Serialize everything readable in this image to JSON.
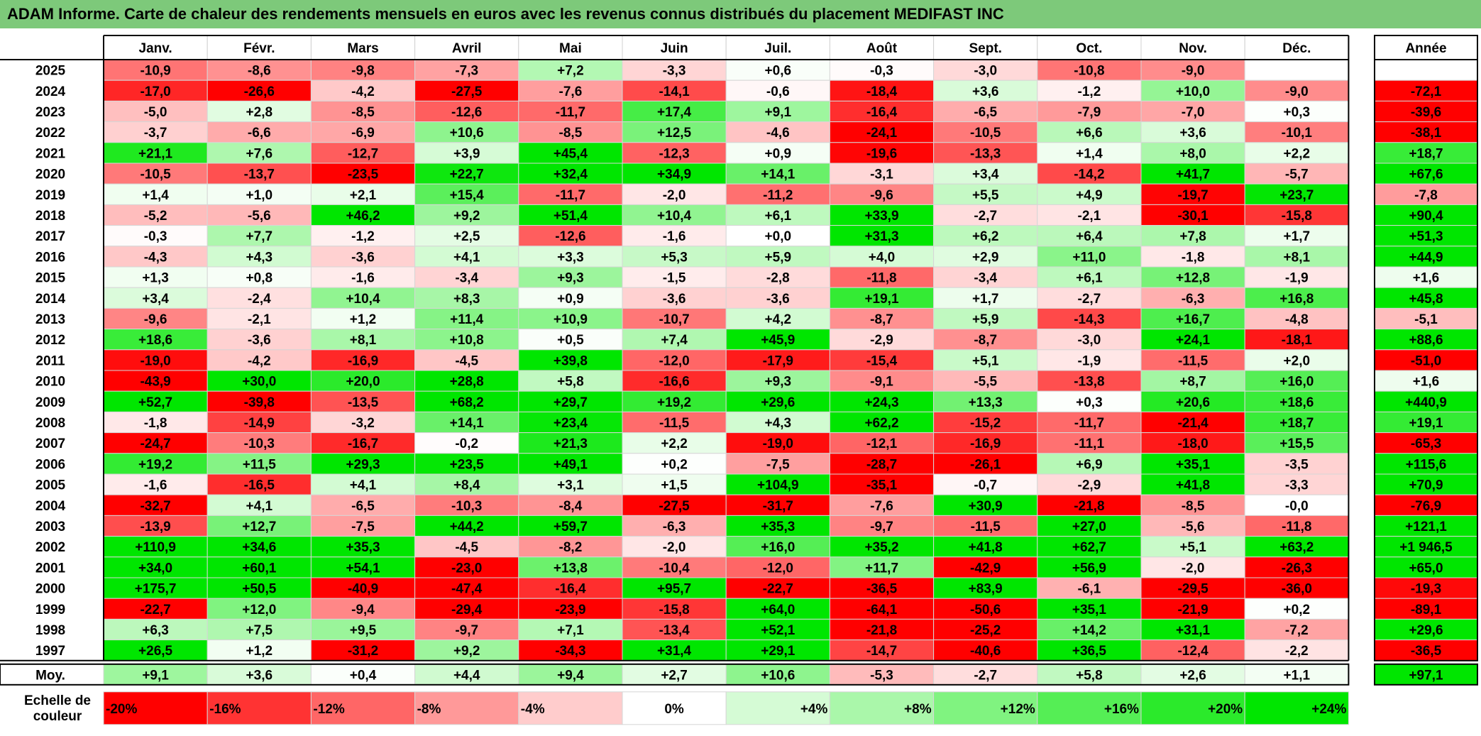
{
  "title": "ADAM Informe. Carte de chaleur des rendements mensuels en euros avec les revenus connus distribués du placement MEDIFAST INC",
  "chart_data": {
    "type": "heatmap",
    "title": "ADAM Informe. Carte de chaleur des rendements mensuels en euros avec les revenus connus distribués du placement MEDIFAST INC",
    "columns": [
      "Janv.",
      "Févr.",
      "Mars",
      "Avril",
      "Mai",
      "Juin",
      "Juil.",
      "Août",
      "Sept.",
      "Oct.",
      "Nov.",
      "Déc."
    ],
    "annual_header": "Année",
    "rows": [
      {
        "year": "2025",
        "values": [
          "-10,9",
          "-8,6",
          "-9,8",
          "-7,3",
          "+7,2",
          "-3,3",
          "+0,6",
          "-0,3",
          "-3,0",
          "-10,8",
          "-9,0",
          ""
        ],
        "annual": ""
      },
      {
        "year": "2024",
        "values": [
          "-17,0",
          "-26,6",
          "-4,2",
          "-27,5",
          "-7,6",
          "-14,1",
          "-0,6",
          "-18,4",
          "+3,6",
          "-1,2",
          "+10,0",
          "-9,0"
        ],
        "annual": "-72,1"
      },
      {
        "year": "2023",
        "values": [
          "-5,0",
          "+2,8",
          "-8,5",
          "-12,6",
          "-11,7",
          "+17,4",
          "+9,1",
          "-16,4",
          "-6,5",
          "-7,9",
          "-7,0",
          "+0,3"
        ],
        "annual": "-39,6"
      },
      {
        "year": "2022",
        "values": [
          "-3,7",
          "-6,6",
          "-6,9",
          "+10,6",
          "-8,5",
          "+12,5",
          "-4,6",
          "-24,1",
          "-10,5",
          "+6,6",
          "+3,6",
          "-10,1"
        ],
        "annual": "-38,1"
      },
      {
        "year": "2021",
        "values": [
          "+21,1",
          "+7,6",
          "-12,7",
          "+3,9",
          "+45,4",
          "-12,3",
          "+0,9",
          "-19,6",
          "-13,3",
          "+1,4",
          "+8,0",
          "+2,2"
        ],
        "annual": "+18,7"
      },
      {
        "year": "2020",
        "values": [
          "-10,5",
          "-13,7",
          "-23,5",
          "+22,7",
          "+32,4",
          "+34,9",
          "+14,1",
          "-3,1",
          "+3,4",
          "-14,2",
          "+41,7",
          "-5,7"
        ],
        "annual": "+67,6"
      },
      {
        "year": "2019",
        "values": [
          "+1,4",
          "+1,0",
          "+2,1",
          "+15,4",
          "-11,7",
          "-2,0",
          "-11,2",
          "-9,6",
          "+5,5",
          "+4,9",
          "-19,7",
          "+23,7"
        ],
        "annual": "-7,8"
      },
      {
        "year": "2018",
        "values": [
          "-5,2",
          "-5,6",
          "+46,2",
          "+9,2",
          "+51,4",
          "+10,4",
          "+6,1",
          "+33,9",
          "-2,7",
          "-2,1",
          "-30,1",
          "-15,8"
        ],
        "annual": "+90,4"
      },
      {
        "year": "2017",
        "values": [
          "-0,3",
          "+7,7",
          "-1,2",
          "+2,5",
          "-12,6",
          "-1,6",
          "+0,0",
          "+31,3",
          "+6,2",
          "+6,4",
          "+7,8",
          "+1,7"
        ],
        "annual": "+51,3"
      },
      {
        "year": "2016",
        "values": [
          "-4,3",
          "+4,3",
          "-3,6",
          "+4,1",
          "+3,3",
          "+5,3",
          "+5,9",
          "+4,0",
          "+2,9",
          "+11,0",
          "-1,8",
          "+8,1"
        ],
        "annual": "+44,9"
      },
      {
        "year": "2015",
        "values": [
          "+1,3",
          "+0,8",
          "-1,6",
          "-3,4",
          "+9,3",
          "-1,5",
          "-2,8",
          "-11,8",
          "-3,4",
          "+6,1",
          "+12,8",
          "-1,9"
        ],
        "annual": "+1,6"
      },
      {
        "year": "2014",
        "values": [
          "+3,4",
          "-2,4",
          "+10,4",
          "+8,3",
          "+0,9",
          "-3,6",
          "-3,6",
          "+19,1",
          "+1,7",
          "-2,7",
          "-6,3",
          "+16,8"
        ],
        "annual": "+45,8"
      },
      {
        "year": "2013",
        "values": [
          "-9,6",
          "-2,1",
          "+1,2",
          "+11,4",
          "+10,9",
          "-10,7",
          "+4,2",
          "-8,7",
          "+5,9",
          "-14,3",
          "+16,7",
          "-4,8"
        ],
        "annual": "-5,1"
      },
      {
        "year": "2012",
        "values": [
          "+18,6",
          "-3,6",
          "+8,1",
          "+10,8",
          "+0,5",
          "+7,4",
          "+45,9",
          "-2,9",
          "-8,7",
          "-3,0",
          "+24,1",
          "-18,1"
        ],
        "annual": "+88,6"
      },
      {
        "year": "2011",
        "values": [
          "-19,0",
          "-4,2",
          "-16,9",
          "-4,5",
          "+39,8",
          "-12,0",
          "-17,9",
          "-15,4",
          "+5,1",
          "-1,9",
          "-11,5",
          "+2,0"
        ],
        "annual": "-51,0"
      },
      {
        "year": "2010",
        "values": [
          "-43,9",
          "+30,0",
          "+20,0",
          "+28,8",
          "+5,8",
          "-16,6",
          "+9,3",
          "-9,1",
          "-5,5",
          "-13,8",
          "+8,7",
          "+16,0"
        ],
        "annual": "+1,6"
      },
      {
        "year": "2009",
        "values": [
          "+52,7",
          "-39,8",
          "-13,5",
          "+68,2",
          "+29,7",
          "+19,2",
          "+29,6",
          "+24,3",
          "+13,3",
          "+0,3",
          "+20,6",
          "+18,6"
        ],
        "annual": "+440,9"
      },
      {
        "year": "2008",
        "values": [
          "-1,8",
          "-14,9",
          "-3,2",
          "+14,1",
          "+23,4",
          "-11,5",
          "+4,3",
          "+62,2",
          "-15,2",
          "-11,7",
          "-21,4",
          "+18,7"
        ],
        "annual": "+19,1"
      },
      {
        "year": "2007",
        "values": [
          "-24,7",
          "-10,3",
          "-16,7",
          "-0,2",
          "+21,3",
          "+2,2",
          "-19,0",
          "-12,1",
          "-16,9",
          "-11,1",
          "-18,0",
          "+15,5"
        ],
        "annual": "-65,3"
      },
      {
        "year": "2006",
        "values": [
          "+19,2",
          "+11,5",
          "+29,3",
          "+23,5",
          "+49,1",
          "+0,2",
          "-7,5",
          "-28,7",
          "-26,1",
          "+6,9",
          "+35,1",
          "-3,5"
        ],
        "annual": "+115,6"
      },
      {
        "year": "2005",
        "values": [
          "-1,6",
          "-16,5",
          "+4,1",
          "+8,4",
          "+3,1",
          "+1,5",
          "+104,9",
          "-35,1",
          "-0,7",
          "-2,9",
          "+41,8",
          "-3,3"
        ],
        "annual": "+70,9"
      },
      {
        "year": "2004",
        "values": [
          "-32,7",
          "+4,1",
          "-6,5",
          "-10,3",
          "-8,4",
          "-27,5",
          "-31,7",
          "-7,6",
          "+30,9",
          "-21,8",
          "-8,5",
          "-0,0"
        ],
        "annual": "-76,9"
      },
      {
        "year": "2003",
        "values": [
          "-13,9",
          "+12,7",
          "-7,5",
          "+44,2",
          "+59,7",
          "-6,3",
          "+35,3",
          "-9,7",
          "-11,5",
          "+27,0",
          "-5,6",
          "-11,8"
        ],
        "annual": "+121,1"
      },
      {
        "year": "2002",
        "values": [
          "+110,9",
          "+34,6",
          "+35,3",
          "-4,5",
          "-8,2",
          "-2,0",
          "+16,0",
          "+35,2",
          "+41,8",
          "+62,7",
          "+5,1",
          "+63,2"
        ],
        "annual": "+1 946,5"
      },
      {
        "year": "2001",
        "values": [
          "+34,0",
          "+60,1",
          "+54,1",
          "-23,0",
          "+13,8",
          "-10,4",
          "-12,0",
          "+11,7",
          "-42,9",
          "+56,9",
          "-2,0",
          "-26,3"
        ],
        "annual": "+65,0"
      },
      {
        "year": "2000",
        "values": [
          "+175,7",
          "+50,5",
          "-40,9",
          "-47,4",
          "-16,4",
          "+95,7",
          "-22,7",
          "-36,5",
          "+83,9",
          "-6,1",
          "-29,5",
          "-36,0"
        ],
        "annual": "-19,3"
      },
      {
        "year": "1999",
        "values": [
          "-22,7",
          "+12,0",
          "-9,4",
          "-29,4",
          "-23,9",
          "-15,8",
          "+64,0",
          "-64,1",
          "-50,6",
          "+35,1",
          "-21,9",
          "+0,2"
        ],
        "annual": "-89,1"
      },
      {
        "year": "1998",
        "values": [
          "+6,3",
          "+7,5",
          "+9,5",
          "-9,7",
          "+7,1",
          "-13,4",
          "+52,1",
          "-21,8",
          "-25,2",
          "+14,2",
          "+31,1",
          "-7,2"
        ],
        "annual": "+29,6"
      },
      {
        "year": "1997",
        "values": [
          "+26,5",
          "+1,2",
          "-31,2",
          "+9,2",
          "-34,3",
          "+31,4",
          "+29,1",
          "-14,7",
          "-40,6",
          "+36,5",
          "-12,4",
          "-2,2"
        ],
        "annual": "-36,5"
      }
    ],
    "average": {
      "label": "Moy.",
      "values": [
        "+9,1",
        "+3,6",
        "+0,4",
        "+4,4",
        "+9,4",
        "+2,7",
        "+10,6",
        "-5,3",
        "-2,7",
        "+5,8",
        "+2,6",
        "+1,1"
      ],
      "annual": "+97,1"
    },
    "scale": {
      "label_line1": "Echelle de",
      "label_line2": "couleur",
      "steps": [
        "-20%",
        "-16%",
        "-12%",
        "-8%",
        "-4%",
        "0%",
        "+4%",
        "+8%",
        "+12%",
        "+16%",
        "+20%",
        "+24%"
      ]
    },
    "colors": {
      "title_bg": "#7dc97a",
      "negative_max": "#ff0000",
      "neutral": "#ffffff",
      "positive_max": "#00e600"
    }
  }
}
